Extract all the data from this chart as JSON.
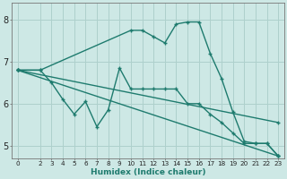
{
  "background_color": "#cde8e5",
  "line_color": "#1e7b6e",
  "grid_color": "#aed0cc",
  "xlabel": "Humidex (Indice chaleur)",
  "xlim": [
    -0.5,
    23.5
  ],
  "ylim": [
    4.7,
    8.4
  ],
  "yticks": [
    5,
    6,
    7,
    8
  ],
  "ytick_labels": [
    "5",
    "6",
    "7",
    "8"
  ],
  "xticks": [
    0,
    2,
    3,
    4,
    5,
    6,
    7,
    8,
    9,
    10,
    11,
    12,
    13,
    14,
    15,
    16,
    17,
    18,
    19,
    20,
    21,
    22,
    23
  ],
  "series": [
    {
      "x": [
        0,
        2,
        10,
        11,
        12,
        13,
        14,
        15,
        16,
        17,
        18,
        19,
        20,
        21,
        22,
        23
      ],
      "y": [
        6.8,
        6.8,
        7.75,
        7.75,
        7.6,
        7.45,
        7.9,
        7.95,
        7.95,
        7.2,
        6.6,
        5.8,
        5.1,
        5.05,
        5.05,
        4.75
      ]
    },
    {
      "x": [
        0,
        2,
        3,
        4,
        5,
        6,
        7,
        8,
        9,
        10,
        11,
        12,
        13,
        14,
        15,
        16,
        17,
        18,
        19,
        20,
        21,
        22,
        23
      ],
      "y": [
        6.8,
        6.8,
        6.5,
        6.1,
        5.75,
        6.05,
        5.45,
        5.85,
        6.85,
        6.35,
        6.35,
        6.35,
        6.35,
        6.35,
        6.0,
        6.0,
        5.75,
        5.55,
        5.3,
        5.05,
        5.05,
        5.05,
        4.75
      ]
    },
    {
      "x": [
        0,
        23
      ],
      "y": [
        6.8,
        5.55
      ]
    },
    {
      "x": [
        0,
        23
      ],
      "y": [
        6.8,
        4.75
      ]
    }
  ]
}
